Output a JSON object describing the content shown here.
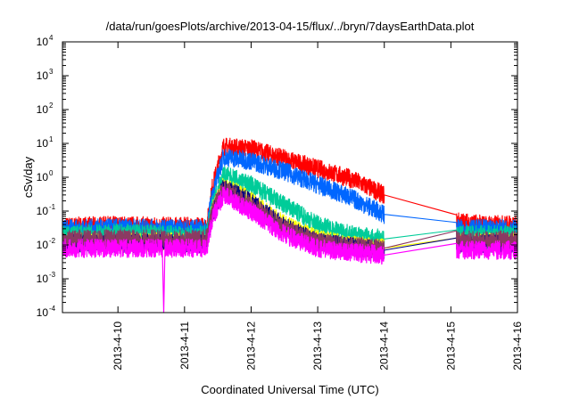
{
  "chart_data": {
    "type": "line",
    "title": "/data/run/goesPlots/archive/2013-04-15/flux/../bryn/7daysEarthData.plot",
    "xlabel": "Coordinated Universal Time (UTC)",
    "ylabel": "cSv/day",
    "y_scale": "log",
    "ylim": [
      0.0001,
      10000
    ],
    "xlim": [
      "2013-04-09T04:00",
      "2013-04-16T00:00"
    ],
    "grid": false,
    "legend": "none",
    "y_ticks": [
      {
        "base": "10",
        "exp": "-4",
        "value": 0.0001
      },
      {
        "base": "10",
        "exp": "-3",
        "value": 0.001
      },
      {
        "base": "10",
        "exp": "-2",
        "value": 0.01
      },
      {
        "base": "10",
        "exp": "-1",
        "value": 0.1
      },
      {
        "base": "10",
        "exp": "0",
        "value": 1
      },
      {
        "base": "10",
        "exp": "1",
        "value": 10
      },
      {
        "base": "10",
        "exp": "2",
        "value": 100
      },
      {
        "base": "10",
        "exp": "3",
        "value": 1000
      },
      {
        "base": "10",
        "exp": "4",
        "value": 10000
      }
    ],
    "x_ticks": [
      {
        "label": "2013-4-10",
        "value": "2013-04-10T00:00"
      },
      {
        "label": "2013-4-11",
        "value": "2013-04-11T00:00"
      },
      {
        "label": "2013-4-12",
        "value": "2013-04-12T00:00"
      },
      {
        "label": "2013-4-13",
        "value": "2013-04-13T00:00"
      },
      {
        "label": "2013-4-14",
        "value": "2013-04-14T00:00"
      },
      {
        "label": "2013-4-15",
        "value": "2013-04-15T00:00"
      },
      {
        "label": "2013-4-16",
        "value": "2013-04-16T00:00"
      }
    ],
    "series": [
      {
        "color": "#ff0000",
        "x": [
          "2013-04-09T04:00",
          "2013-04-10T00:00",
          "2013-04-11T00:00",
          "2013-04-11T08:00",
          "2013-04-11T10:00",
          "2013-04-11T14:00",
          "2013-04-12T00:00",
          "2013-04-12T12:00",
          "2013-04-13T00:00",
          "2013-04-13T12:00",
          "2013-04-14T00:00",
          "2013-04-15T02:00",
          "2013-04-15T12:00",
          "2013-04-16T00:00"
        ],
        "y": [
          0.035,
          0.038,
          0.035,
          0.035,
          0.5,
          8,
          7,
          3.5,
          1.8,
          0.9,
          0.3,
          0.05,
          0.04,
          0.04
        ]
      },
      {
        "color": "#0066ff",
        "x": [
          "2013-04-09T04:00",
          "2013-04-10T00:00",
          "2013-04-11T00:00",
          "2013-04-11T08:00",
          "2013-04-11T10:00",
          "2013-04-11T14:00",
          "2013-04-12T00:00",
          "2013-04-12T12:00",
          "2013-04-13T00:00",
          "2013-04-13T12:00",
          "2013-04-14T00:00",
          "2013-04-15T02:00",
          "2013-04-15T12:00",
          "2013-04-16T00:00"
        ],
        "y": [
          0.03,
          0.032,
          0.03,
          0.03,
          0.3,
          4,
          3,
          1.5,
          0.6,
          0.25,
          0.08,
          0.03,
          0.03,
          0.03
        ]
      },
      {
        "color": "#00cc99",
        "x": [
          "2013-04-09T04:00",
          "2013-04-10T00:00",
          "2013-04-11T00:00",
          "2013-04-11T08:00",
          "2013-04-11T10:00",
          "2013-04-11T14:00",
          "2013-04-12T00:00",
          "2013-04-12T12:00",
          "2013-04-13T00:00",
          "2013-04-13T12:00",
          "2013-04-14T00:00",
          "2013-04-15T02:00",
          "2013-04-15T12:00",
          "2013-04-16T00:00"
        ],
        "y": [
          0.02,
          0.022,
          0.02,
          0.02,
          0.15,
          1.2,
          0.6,
          0.15,
          0.04,
          0.02,
          0.015,
          0.02,
          0.02,
          0.02
        ]
      },
      {
        "color": "#ffff00",
        "x": [
          "2013-04-09T04:00",
          "2013-04-10T00:00",
          "2013-04-11T00:00",
          "2013-04-11T08:00",
          "2013-04-11T10:00",
          "2013-04-11T14:00",
          "2013-04-12T00:00",
          "2013-04-12T12:00",
          "2013-04-13T00:00",
          "2013-04-13T12:00",
          "2013-04-14T00:00",
          "2013-04-15T02:00",
          "2013-04-15T12:00",
          "2013-04-16T00:00"
        ],
        "y": [
          0.012,
          0.012,
          0.012,
          0.012,
          0.1,
          0.6,
          0.2,
          0.04,
          0.015,
          0.01,
          0.008,
          0.012,
          0.012,
          0.012
        ]
      },
      {
        "color": "#000080",
        "x": [
          "2013-04-09T04:00",
          "2013-04-10T00:00",
          "2013-04-11T00:00",
          "2013-04-11T08:00",
          "2013-04-11T10:00",
          "2013-04-11T14:00",
          "2013-04-12T00:00",
          "2013-04-12T12:00",
          "2013-04-13T00:00",
          "2013-04-13T12:00",
          "2013-04-14T00:00",
          "2013-04-15T02:00",
          "2013-04-15T12:00",
          "2013-04-16T00:00"
        ],
        "y": [
          0.011,
          0.011,
          0.011,
          0.011,
          0.08,
          0.5,
          0.18,
          0.035,
          0.012,
          0.009,
          0.007,
          0.011,
          0.011,
          0.011
        ]
      },
      {
        "color": "#8b3a62",
        "x": [
          "2013-04-09T04:00",
          "2013-04-10T00:00",
          "2013-04-11T00:00",
          "2013-04-11T08:00",
          "2013-04-11T10:00",
          "2013-04-11T14:00",
          "2013-04-12T00:00",
          "2013-04-12T12:00",
          "2013-04-13T00:00",
          "2013-04-13T12:00",
          "2013-04-14T00:00",
          "2013-04-15T02:00",
          "2013-04-15T12:00",
          "2013-04-16T00:00"
        ],
        "y": [
          0.015,
          0.015,
          0.015,
          0.015,
          0.1,
          0.45,
          0.15,
          0.03,
          0.012,
          0.009,
          0.008,
          0.014,
          0.014,
          0.014
        ]
      },
      {
        "color": "#ff00ff",
        "x": [
          "2013-04-09T04:00",
          "2013-04-10T00:00",
          "2013-04-10T16:00",
          "2013-04-10T16:30",
          "2013-04-10T17:00",
          "2013-04-11T00:00",
          "2013-04-11T08:00",
          "2013-04-11T10:00",
          "2013-04-11T14:00",
          "2013-04-12T00:00",
          "2013-04-12T12:00",
          "2013-04-13T00:00",
          "2013-04-13T12:00",
          "2013-04-14T00:00",
          "2013-04-15T02:00",
          "2013-04-15T12:00",
          "2013-04-16T00:00"
        ],
        "y": [
          0.008,
          0.008,
          0.008,
          0.0001,
          0.008,
          0.008,
          0.008,
          0.06,
          0.3,
          0.1,
          0.02,
          0.008,
          0.006,
          0.005,
          0.007,
          0.007,
          0.007
        ]
      }
    ]
  }
}
